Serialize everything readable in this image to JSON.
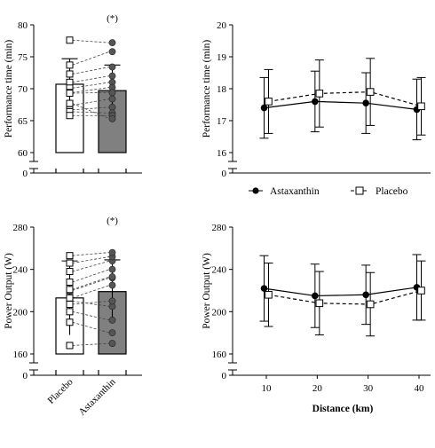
{
  "chart_data": [
    {
      "type": "bar",
      "ylabel": "Performance time (min)",
      "ylim": [
        60,
        80
      ],
      "yticks": [
        60,
        65,
        70,
        75,
        80
      ],
      "axis_zero": "0",
      "annotation": "(*)",
      "categories": [
        "Placebo",
        "Astaxanthin"
      ],
      "means": [
        70.7,
        69.7
      ],
      "sd": [
        4.0,
        4.0
      ],
      "paired": {
        "placebo": [
          77.6,
          73.7,
          72.3,
          71.0,
          70.1,
          69.4,
          67.4,
          66.7,
          66.4,
          65.8,
          69.3,
          67.7
        ],
        "astaxanthin": [
          77.2,
          75.8,
          73.4,
          72.0,
          71.0,
          70.2,
          68.4,
          67.1,
          66.2,
          65.8,
          69.4,
          65.3
        ]
      },
      "placebo_color": "#ffffff",
      "astaxanthin_color": "#808080"
    },
    {
      "type": "line",
      "ylabel": "Performance time (min)",
      "ylim": [
        16,
        20
      ],
      "yticks": [
        16,
        17,
        18,
        19,
        20
      ],
      "axis_zero": "0",
      "x": [
        10,
        20,
        30,
        40
      ],
      "series": [
        {
          "name": "Astaxanthin",
          "values": [
            17.4,
            17.6,
            17.55,
            17.35
          ],
          "sd": [
            0.95,
            0.95,
            0.95,
            0.95
          ]
        },
        {
          "name": "Placebo",
          "values": [
            17.6,
            17.85,
            17.9,
            17.45
          ],
          "sd": [
            1.0,
            1.05,
            1.05,
            0.9
          ]
        }
      ]
    },
    {
      "type": "bar",
      "ylabel": "Power Output (W)",
      "ylim": [
        160,
        280
      ],
      "yticks": [
        160,
        200,
        240,
        280
      ],
      "axis_zero": "0",
      "annotation": "(*)",
      "categories": [
        "Placebo",
        "Astaxanthin"
      ],
      "means": [
        213,
        219
      ],
      "sd": [
        35,
        30
      ],
      "paired": {
        "placebo": [
          168,
          190,
          200,
          210,
          213,
          220,
          228,
          238,
          246,
          253,
          207,
          221
        ],
        "astaxanthin": [
          170,
          180,
          192,
          205,
          225,
          232,
          240,
          248,
          252,
          256,
          210,
          233
        ]
      },
      "placebo_color": "#ffffff",
      "astaxanthin_color": "#808080"
    },
    {
      "type": "line",
      "ylabel": "Power Output (W)",
      "xlabel": "Distance (km)",
      "ylim": [
        160,
        280
      ],
      "yticks": [
        160,
        200,
        240,
        280
      ],
      "axis_zero": "0",
      "x": [
        10,
        20,
        30,
        40
      ],
      "xticks": [
        10,
        20,
        30,
        40
      ],
      "series": [
        {
          "name": "Astaxanthin",
          "values": [
            222,
            215,
            216,
            223
          ],
          "sd": [
            31,
            30,
            28,
            31
          ]
        },
        {
          "name": "Placebo",
          "values": [
            216,
            208,
            207,
            220
          ],
          "sd": [
            30,
            30,
            30,
            28
          ]
        }
      ]
    }
  ],
  "legend": {
    "astaxanthin_label": "Astaxanthin",
    "placebo_label": "Placebo"
  }
}
